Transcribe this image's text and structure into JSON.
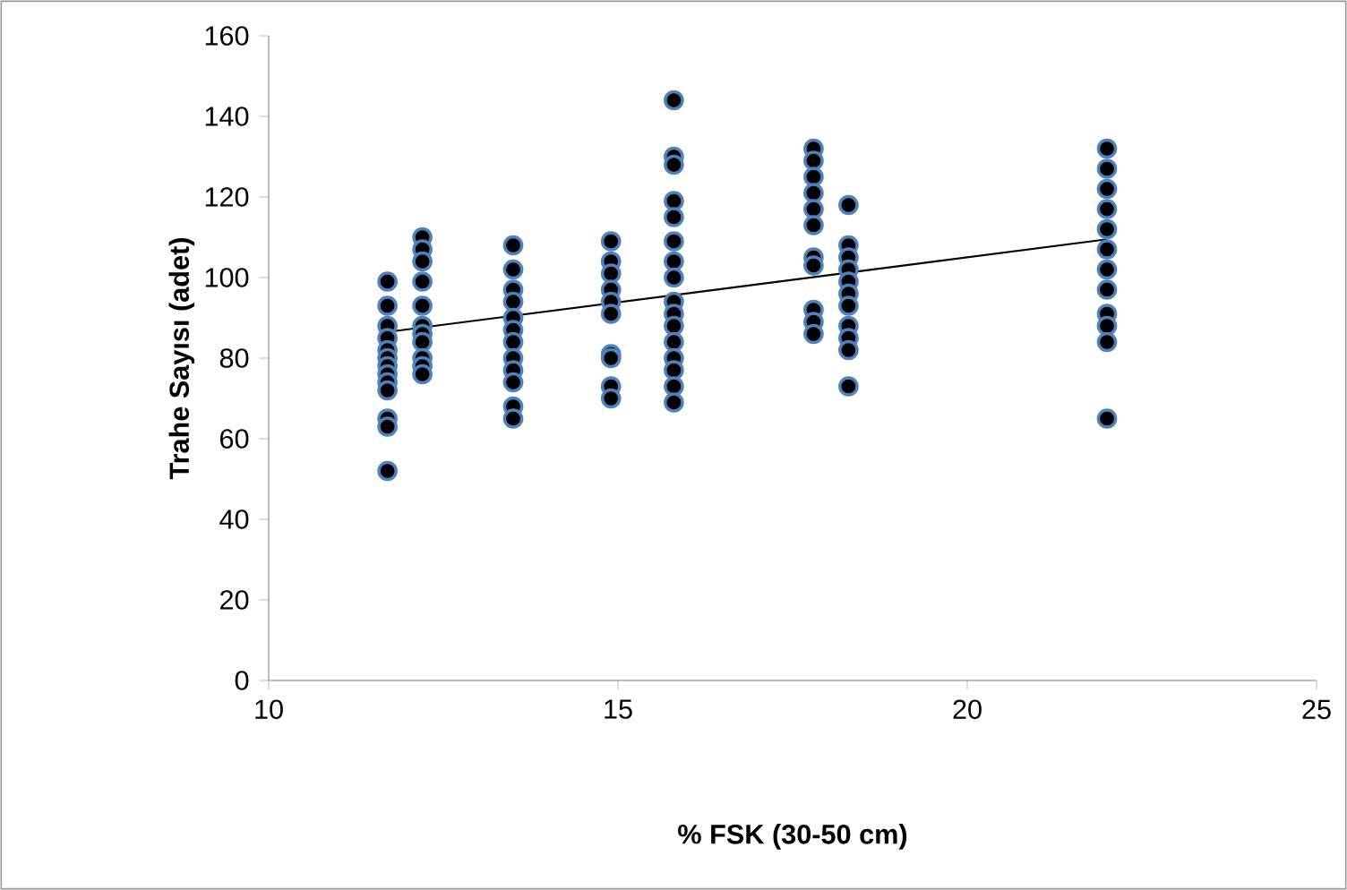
{
  "chart_data": {
    "type": "scatter",
    "xlabel": "% FSK (30-50 cm)",
    "ylabel": "Trahe Sayısı (adet)",
    "xlim": [
      10,
      25
    ],
    "ylim": [
      0,
      160
    ],
    "xticks": [
      10,
      15,
      20,
      25
    ],
    "yticks": [
      0,
      20,
      40,
      60,
      80,
      100,
      120,
      140,
      160
    ],
    "grid": false,
    "series": [
      {
        "color": "#000000",
        "marker": "circle",
        "x": [
          11.7,
          11.7,
          11.7,
          11.7,
          11.7,
          11.7,
          11.7,
          11.7,
          11.7,
          11.7,
          11.7,
          11.7,
          11.7,
          12.2,
          12.2,
          12.2,
          12.2,
          12.2,
          12.2,
          12.2,
          12.2,
          12.2,
          12.2,
          12.2,
          13.5,
          13.5,
          13.5,
          13.5,
          13.5,
          13.5,
          13.5,
          13.5,
          13.5,
          13.5,
          13.5,
          13.5,
          14.9,
          14.9,
          14.9,
          14.9,
          14.9,
          14.9,
          14.9,
          14.9,
          14.9,
          14.9,
          15.8,
          15.8,
          15.8,
          15.8,
          15.8,
          15.8,
          15.8,
          15.8,
          15.8,
          15.8,
          15.8,
          15.8,
          15.8,
          15.8,
          15.8,
          15.8,
          17.8,
          17.8,
          17.8,
          17.8,
          17.8,
          17.8,
          17.8,
          17.8,
          17.8,
          17.8,
          17.8,
          18.3,
          18.3,
          18.3,
          18.3,
          18.3,
          18.3,
          18.3,
          18.3,
          18.3,
          18.3,
          18.3,
          22,
          22,
          22,
          22,
          22,
          22,
          22,
          22,
          22,
          22,
          22,
          22
        ],
        "values": [
          99,
          93,
          88,
          85,
          82,
          80,
          78,
          76,
          74,
          72,
          65,
          63,
          52,
          110,
          107,
          104,
          99,
          93,
          88,
          86,
          84,
          80,
          78,
          76,
          108,
          102,
          97,
          94,
          90,
          87,
          84,
          80,
          77,
          74,
          68,
          65,
          109,
          104,
          101,
          97,
          94,
          91,
          81,
          80,
          73,
          70,
          144,
          130,
          128,
          119,
          115,
          109,
          104,
          100,
          94,
          91,
          88,
          84,
          80,
          77,
          73,
          69,
          132,
          129,
          125,
          121,
          117,
          113,
          105,
          103,
          92,
          89,
          86,
          118,
          108,
          105,
          102,
          99,
          96,
          93,
          88,
          85,
          82,
          73,
          132,
          127,
          122,
          117,
          112,
          107,
          102,
          97,
          91,
          88,
          84,
          65
        ]
      },
      {
        "type": "line",
        "color": "#000000",
        "marker": "none",
        "x": [
          11.7,
          22
        ],
        "values": [
          86.5,
          109.5
        ]
      }
    ]
  }
}
